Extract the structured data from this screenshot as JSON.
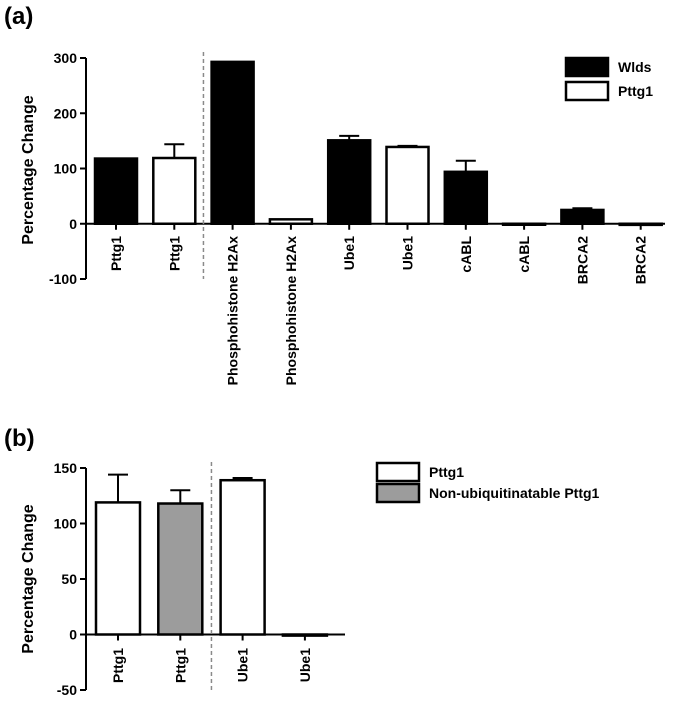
{
  "chart_data": [
    {
      "panel_label": "(a)",
      "type": "bar",
      "ylabel": "Percentage Change",
      "ylim": [
        -100,
        300
      ],
      "yticks": [
        -100,
        0,
        100,
        200,
        300
      ],
      "categories": [
        "Pttg1",
        "Pttg1",
        "Phosphohistone H2Ax",
        "Phosphohistone H2Ax",
        "Ube1",
        "Ube1",
        "cABL",
        "cABL",
        "BRCA2",
        "BRCA2"
      ],
      "values": [
        118,
        119,
        293,
        8,
        151,
        139,
        94,
        -1,
        25,
        -2
      ],
      "errors": [
        0,
        25,
        0,
        0,
        8,
        2,
        20,
        0,
        3,
        0
      ],
      "bar_series": [
        "Wlds",
        "Pttg1",
        "Wlds",
        "Pttg1",
        "Wlds",
        "Pttg1",
        "Wlds",
        "Pttg1",
        "Wlds",
        "Pttg1"
      ],
      "series": [
        {
          "name": "Wlds",
          "color": "#000000"
        },
        {
          "name": "Pttg1",
          "color": "#ffffff"
        }
      ],
      "divider_after_index": 1,
      "legend_position": "top-right"
    },
    {
      "panel_label": "(b)",
      "type": "bar",
      "ylabel": "Percentage Change",
      "ylim": [
        -50,
        150
      ],
      "yticks": [
        -50,
        0,
        50,
        100,
        150
      ],
      "categories": [
        "Pttg1",
        "Pttg1",
        "Ube1",
        "Ube1"
      ],
      "values": [
        119,
        118,
        139,
        -1
      ],
      "errors": [
        25,
        12,
        2,
        0
      ],
      "bar_series": [
        "Pttg1",
        "Non-ubiquitinatable Pttg1",
        "Pttg1",
        "Pttg1"
      ],
      "series": [
        {
          "name": "Pttg1",
          "color": "#ffffff"
        },
        {
          "name": "Non-ubiquitinatable Pttg1",
          "color": "#9c9c9c"
        }
      ],
      "divider_after_index": 1,
      "legend_position": "top-right"
    }
  ]
}
